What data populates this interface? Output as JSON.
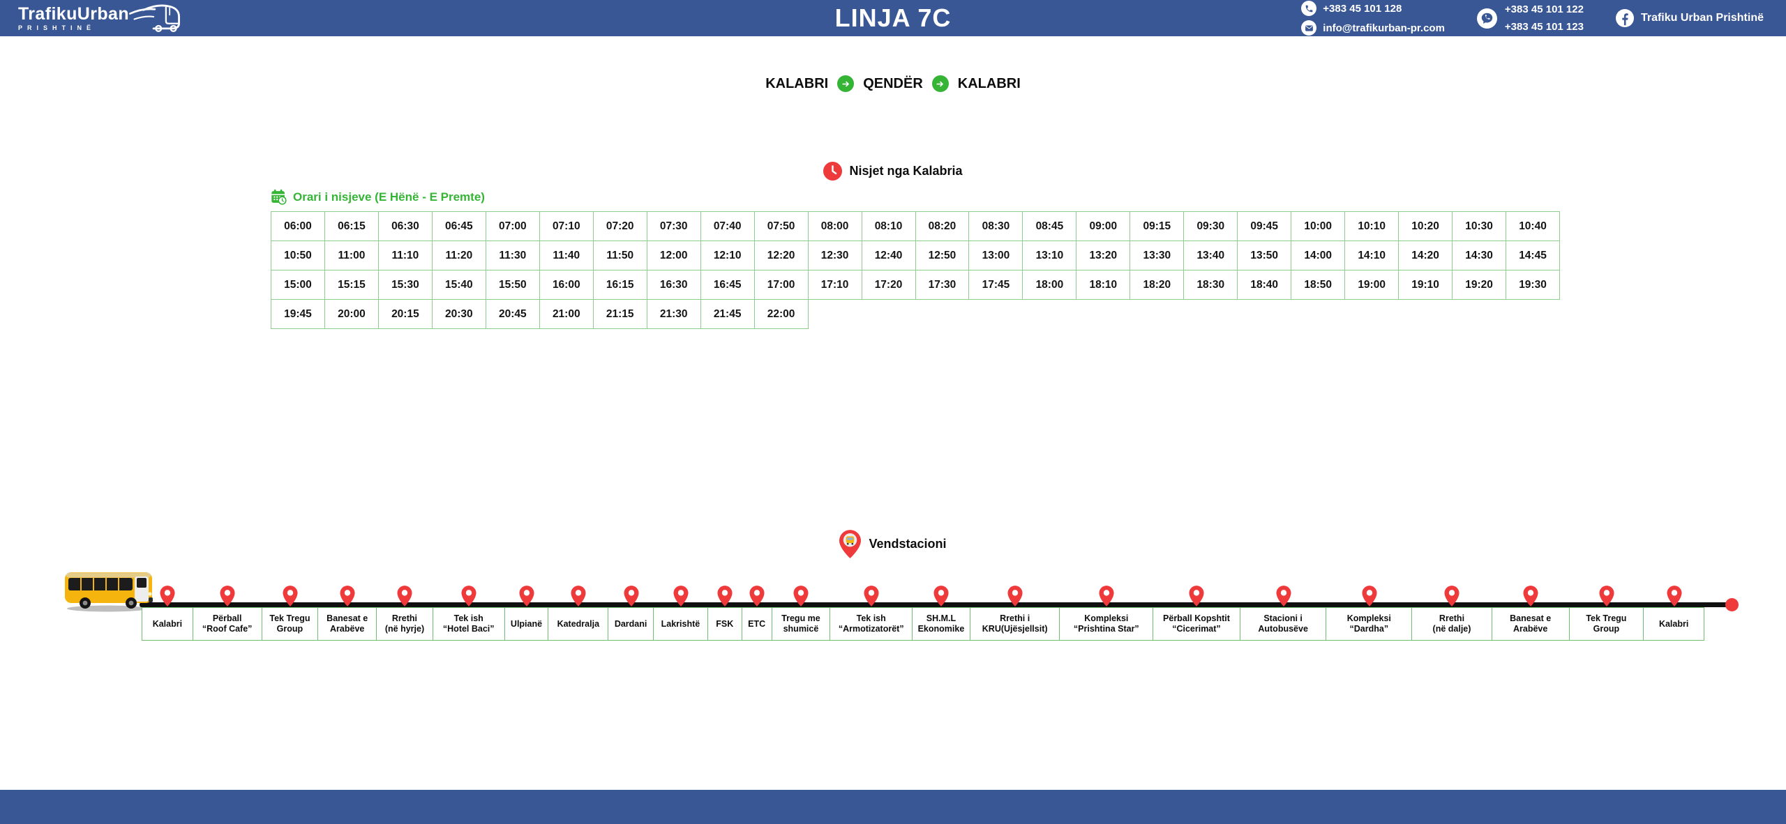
{
  "colors": {
    "header_blue": "#3a5795",
    "green": "#35b435",
    "table_border": "#8ccc8c",
    "station_border": "#6fbf6f",
    "red": "#ee3a3a",
    "bus_yellow": "#f6b40e",
    "line_black": "#101010"
  },
  "header": {
    "logo_title": "TrafikuUrban",
    "logo_subtitle": "PRISHTINË",
    "page_title": "LINJA 7C",
    "phone": "+383 45 101 128",
    "email": "info@trafikurban-pr.com",
    "viber_numbers": [
      "+383 45 101 122",
      "+383 45 101 123"
    ],
    "facebook": "Trafiku Urban Prishtinë"
  },
  "route_header": {
    "from": "KALABRI",
    "via": "QENDËR",
    "to": "KALABRI"
  },
  "departures": {
    "heading": "Nisjet nga Kalabria",
    "schedule_heading": "Orari i nisjeve (E Hënë - E Premte)",
    "times": [
      "06:00",
      "06:15",
      "06:30",
      "06:45",
      "07:00",
      "07:10",
      "07:20",
      "07:30",
      "07:40",
      "07:50",
      "08:00",
      "08:10",
      "08:20",
      "08:30",
      "08:45",
      "09:00",
      "09:15",
      "09:30",
      "09:45",
      "10:00",
      "10:10",
      "10:20",
      "10:30",
      "10:40",
      "10:50",
      "11:00",
      "11:10",
      "11:20",
      "11:30",
      "11:40",
      "11:50",
      "12:00",
      "12:10",
      "12:20",
      "12:30",
      "12:40",
      "12:50",
      "13:00",
      "13:10",
      "13:20",
      "13:30",
      "13:40",
      "13:50",
      "14:00",
      "14:10",
      "14:20",
      "14:30",
      "14:45",
      "15:00",
      "15:15",
      "15:30",
      "15:40",
      "15:50",
      "16:00",
      "16:15",
      "16:30",
      "16:45",
      "17:00",
      "17:10",
      "17:20",
      "17:30",
      "17:45",
      "18:00",
      "18:10",
      "18:20",
      "18:30",
      "18:40",
      "18:50",
      "19:00",
      "19:10",
      "19:20",
      "19:30",
      "19:45",
      "20:00",
      "20:15",
      "20:30",
      "20:45",
      "21:00",
      "21:15",
      "21:30",
      "21:45",
      "22:00"
    ]
  },
  "stations": {
    "heading": "Vendstacioni",
    "list": [
      "Kalabri",
      "Përball\n“Roof Cafe”",
      "Tek Tregu\nGroup",
      "Banesat e\nArabëve",
      "Rrethi\n(në hyrje)",
      "Tek ish\n“Hotel Baci”",
      "Ulpianë",
      "Katedralja",
      "Dardani",
      "Lakrishtë",
      "FSK",
      "ETC",
      "Tregu me\nshumicë",
      "Tek ish\n“Armotizatorët”",
      "SH.M.L\nEkonomike",
      "Rrethi i\nKRU(Ujësjellsit)",
      "Kompleksi\n“Prishtina Star”",
      "Përball Kopshtit\n“Cicerimat”",
      "Stacioni i\nAutobusëve",
      "Kompleksi\n“Dardha”",
      "Rrethi\n(në dalje)",
      "Banesat e\nArabëve",
      "Tek Tregu\nGroup",
      "Kalabri"
    ]
  }
}
